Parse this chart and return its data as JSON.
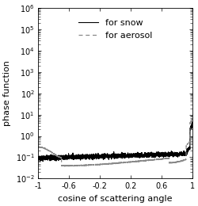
{
  "title": "",
  "xlabel": "cosine of scattering angle",
  "ylabel": "phase function",
  "xlim": [
    -1,
    1
  ],
  "ylim": [
    0.01,
    1000000.0
  ],
  "legend_entries": [
    "for snow",
    "for aerosol"
  ],
  "snow_color": "#000000",
  "aerosol_color": "#888888",
  "background_color": "#ffffff",
  "xlabel_fontsize": 8,
  "ylabel_fontsize": 8,
  "legend_fontsize": 8,
  "tick_fontsize": 7,
  "linewidth_snow": 0.8,
  "linewidth_aerosol": 0.9
}
